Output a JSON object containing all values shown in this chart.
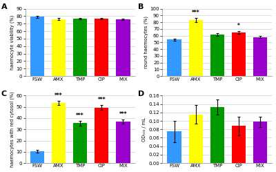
{
  "categories": [
    "FSW",
    "AMX",
    "TMP",
    "CIP",
    "MIX"
  ],
  "bar_colors": [
    "#3399ff",
    "#ffff00",
    "#009900",
    "#ff0000",
    "#9900cc"
  ],
  "panel_A": {
    "title": "A",
    "ylabel": "haemocyte viability (%)",
    "values": [
      79,
      76,
      77,
      77,
      76
    ],
    "errors": [
      1.0,
      1.5,
      1.0,
      1.0,
      1.0
    ],
    "ylim": [
      0,
      90
    ],
    "yticks": [
      0,
      10,
      20,
      30,
      40,
      50,
      60,
      70,
      80,
      90
    ],
    "sig": [
      "",
      "",
      "",
      "",
      ""
    ]
  },
  "panel_B": {
    "title": "B",
    "ylabel": "round haemocytes (%)",
    "values": [
      54,
      83,
      62,
      65,
      58
    ],
    "errors": [
      1.5,
      3.0,
      2.0,
      2.0,
      2.0
    ],
    "ylim": [
      0,
      100
    ],
    "yticks": [
      0,
      10,
      20,
      30,
      40,
      50,
      60,
      70,
      80,
      90,
      100
    ],
    "sig": [
      "",
      "***",
      "",
      "*",
      ""
    ]
  },
  "panel_C": {
    "title": "C",
    "ylabel": "haemocytes with red cytosol (%)",
    "values": [
      10.5,
      53.5,
      35.5,
      49.5,
      37
    ],
    "errors": [
      1.0,
      2.0,
      2.0,
      2.0,
      2.0
    ],
    "ylim": [
      0,
      60
    ],
    "yticks": [
      0,
      10,
      20,
      30,
      40,
      50,
      60
    ],
    "sig": [
      "",
      "***",
      "***",
      "***",
      "***"
    ]
  },
  "panel_D": {
    "title": "D",
    "ylabel": "OD₅₀₀ / mL",
    "values": [
      0.075,
      0.115,
      0.133,
      0.088,
      0.098
    ],
    "errors": [
      0.025,
      0.022,
      0.018,
      0.022,
      0.012
    ],
    "ylim": [
      0,
      0.16
    ],
    "yticks": [
      0.0,
      0.02,
      0.04,
      0.06,
      0.08,
      0.1,
      0.12,
      0.14,
      0.16
    ],
    "sig": [
      "",
      "",
      "",
      "",
      ""
    ]
  },
  "background_color": "#ffffff",
  "grid_color": "#d0d0d0"
}
